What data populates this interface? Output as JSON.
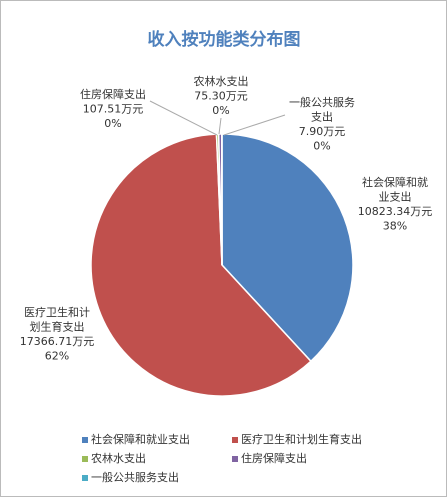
{
  "chart_data": {
    "type": "pie",
    "title": "收入按功能类分布图",
    "categories": [
      "社会保障和就业支出",
      "医疗卫生和计划生育支出",
      "农林水支出",
      "住房保障支出",
      "一般公共服务支出"
    ],
    "values": [
      10823.34,
      17366.71,
      75.3,
      107.51,
      7.9
    ],
    "value_labels": [
      "10823.34万元",
      "17366.71万元",
      "75.30万元",
      "107.51万元",
      "7.90万元"
    ],
    "percent_labels": [
      "38%",
      "62%",
      "0%",
      "0%",
      "0%"
    ],
    "colors": [
      "#4f81bd",
      "#c0504d",
      "#9bbb59",
      "#8064a2",
      "#4bacc6"
    ],
    "legend": "bottom"
  }
}
